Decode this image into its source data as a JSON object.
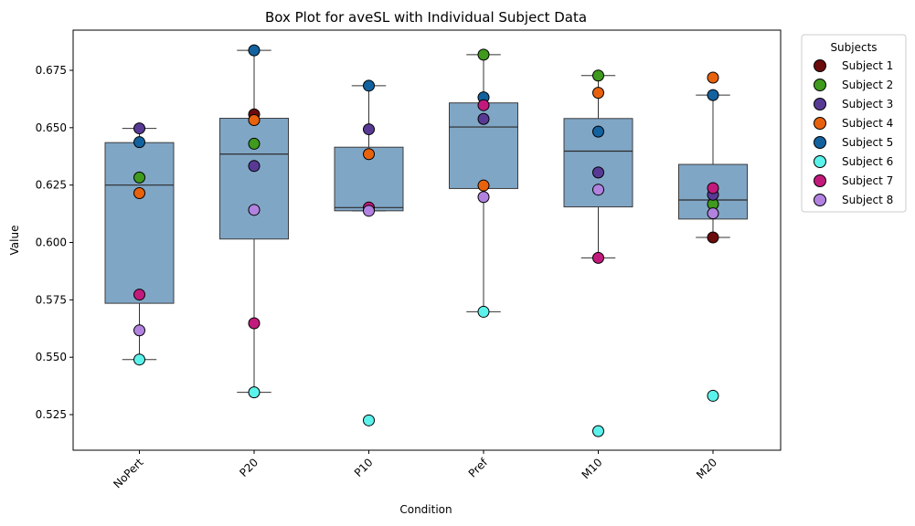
{
  "chart_data": {
    "type": "box",
    "title": "Box Plot for aveSL with Individual Subject Data",
    "xlabel": "Condition",
    "ylabel": "Value",
    "ylim": [
      0.5095,
      0.6925
    ],
    "yticks": [
      0.525,
      0.55,
      0.575,
      0.6,
      0.625,
      0.65,
      0.675
    ],
    "ytick_labels": [
      "0.525",
      "0.550",
      "0.575",
      "0.600",
      "0.625",
      "0.650",
      "0.675"
    ],
    "categories": [
      "NoPert",
      "P20",
      "P10",
      "Pref",
      "M10",
      "M20"
    ],
    "box_color": "#4f83b0",
    "boxes": [
      {
        "category": "NoPert",
        "whisker_low": 0.549,
        "q1": 0.5735,
        "median": 0.625,
        "q3": 0.6435,
        "whisker_high": 0.6497
      },
      {
        "category": "P20",
        "whisker_low": 0.5347,
        "q1": 0.6015,
        "median": 0.6385,
        "q3": 0.6541,
        "whisker_high": 0.6837
      },
      {
        "category": "P10",
        "whisker_low": 0.6138,
        "q1": 0.6138,
        "median": 0.6152,
        "q3": 0.6415,
        "whisker_high": 0.6683
      },
      {
        "category": "Pref",
        "whisker_low": 0.5698,
        "q1": 0.6235,
        "median": 0.6503,
        "q3": 0.6608,
        "whisker_high": 0.6818
      },
      {
        "category": "M10",
        "whisker_low": 0.5933,
        "q1": 0.6155,
        "median": 0.6398,
        "q3": 0.654,
        "whisker_high": 0.6727
      },
      {
        "category": "M20",
        "whisker_low": 0.6022,
        "q1": 0.6102,
        "median": 0.6185,
        "q3": 0.634,
        "whisker_high": 0.6642
      }
    ],
    "legend_title": "Subjects",
    "legend_position": "outside-upper-right",
    "series": [
      {
        "name": "Subject 1",
        "color": "#6b0b0b",
        "values": [
          null,
          0.6558,
          null,
          null,
          null,
          0.6022
        ]
      },
      {
        "name": "Subject 2",
        "color": "#3f9a1e",
        "values": [
          0.6283,
          0.643,
          null,
          0.6818,
          0.6727,
          0.6167
        ]
      },
      {
        "name": "Subject 3",
        "color": "#583a95",
        "values": [
          0.6497,
          0.6333,
          0.6493,
          0.6538,
          0.6305,
          0.6208
        ]
      },
      {
        "name": "Subject 4",
        "color": "#e8620e",
        "values": [
          0.6215,
          0.6533,
          0.6385,
          0.6248,
          0.6652,
          0.6718
        ]
      },
      {
        "name": "Subject 5",
        "color": "#1362a0",
        "values": [
          0.6437,
          0.6837,
          0.6683,
          0.6632,
          0.6483,
          0.6642
        ]
      },
      {
        "name": "Subject 6",
        "color": "#5cf2ec",
        "values": [
          0.549,
          0.5347,
          0.5225,
          0.5698,
          0.5178,
          0.5332
        ]
      },
      {
        "name": "Subject 7",
        "color": "#c21a7c",
        "values": [
          0.5773,
          0.5648,
          0.6152,
          0.6598,
          0.5933,
          0.6237
        ]
      },
      {
        "name": "Subject 8",
        "color": "#b282e0",
        "values": [
          0.5617,
          0.6142,
          0.6138,
          0.6198,
          0.623,
          0.6127
        ]
      }
    ]
  }
}
